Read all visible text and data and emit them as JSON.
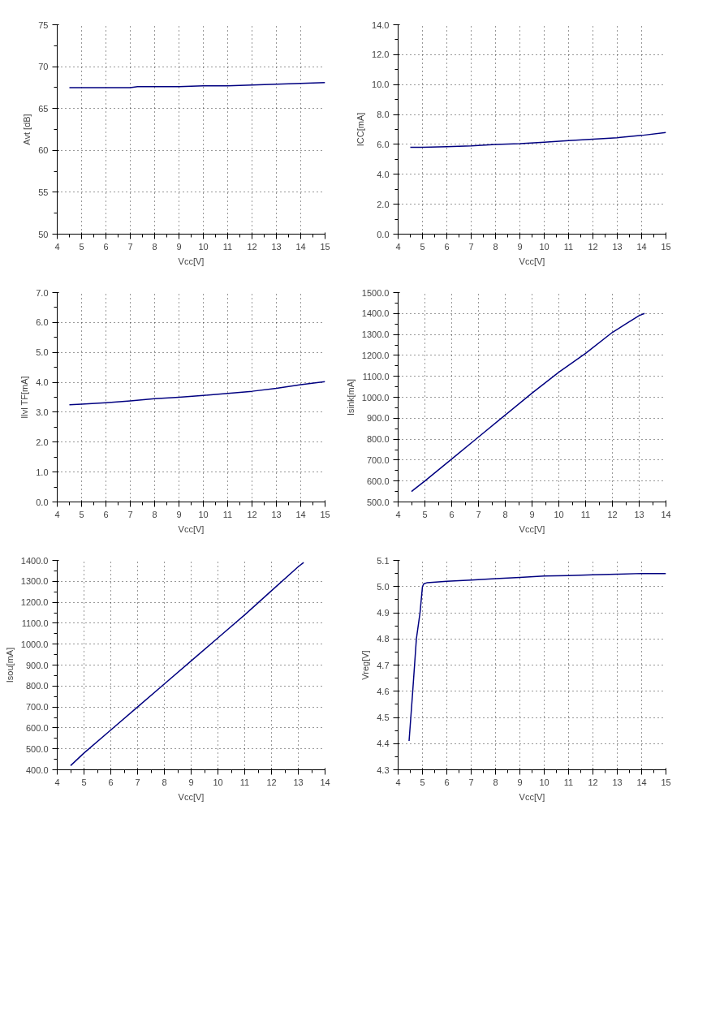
{
  "chart_data": [
    {
      "type": "line",
      "xlabel": "Vcc[V]",
      "ylabel": "Avt [dB]",
      "x": [
        4.5,
        5,
        6,
        7,
        7.3,
        8,
        9,
        10,
        11,
        12,
        13,
        14,
        15
      ],
      "series": [
        {
          "color": "#000080",
          "values": [
            67.5,
            67.5,
            67.5,
            67.5,
            67.6,
            67.6,
            67.6,
            67.7,
            67.7,
            67.8,
            67.9,
            68.0,
            68.1
          ]
        }
      ],
      "xlim": [
        4,
        15
      ],
      "ylim": [
        50,
        75
      ],
      "xticks": [
        4,
        5,
        6,
        7,
        8,
        9,
        10,
        11,
        12,
        13,
        14,
        15
      ],
      "yticks": [
        50,
        55,
        60,
        65,
        70,
        75
      ],
      "grid": true,
      "line_style": "solid"
    },
    {
      "type": "line",
      "xlabel": "Vcc[V]",
      "ylabel": "ICC[mA]",
      "x": [
        4.5,
        5,
        6,
        7,
        8,
        9,
        10,
        11,
        12,
        13,
        14,
        15
      ],
      "series": [
        {
          "color": "#000080",
          "values": [
            5.8,
            5.8,
            5.85,
            5.9,
            6.0,
            6.05,
            6.15,
            6.25,
            6.35,
            6.45,
            6.6,
            6.8
          ]
        }
      ],
      "xlim": [
        4,
        15
      ],
      "ylim": [
        0,
        14
      ],
      "xticks": [
        4,
        5,
        6,
        7,
        8,
        9,
        10,
        11,
        12,
        13,
        14,
        15
      ],
      "yticks": [
        {
          "value": 0,
          "label": "0.0"
        },
        {
          "value": 2,
          "label": "2.0"
        },
        {
          "value": 4,
          "label": "4.0"
        },
        {
          "value": 6,
          "label": "6.0"
        },
        {
          "value": 8,
          "label": "8.0"
        },
        {
          "value": 10,
          "label": "10.0"
        },
        {
          "value": 12,
          "label": "12.0"
        },
        {
          "value": 14,
          "label": "14.0"
        }
      ],
      "grid": true,
      "line_style": "solid"
    },
    {
      "type": "line",
      "xlabel": "Vcc[V]",
      "ylabel": "Ilvl TF[mA]",
      "x": [
        4.5,
        5,
        6,
        7,
        8,
        9,
        10,
        11,
        12,
        13,
        14,
        15
      ],
      "series": [
        {
          "color": "#000080",
          "values": [
            3.25,
            3.27,
            3.32,
            3.38,
            3.45,
            3.5,
            3.56,
            3.63,
            3.7,
            3.8,
            3.92,
            4.02
          ]
        }
      ],
      "xlim": [
        4,
        15
      ],
      "ylim": [
        0,
        7
      ],
      "xticks": [
        4,
        5,
        6,
        7,
        8,
        9,
        10,
        11,
        12,
        13,
        14,
        15
      ],
      "yticks": [
        {
          "value": 0,
          "label": "0.0"
        },
        {
          "value": 1,
          "label": "1.0"
        },
        {
          "value": 2,
          "label": "2.0"
        },
        {
          "value": 3,
          "label": "3.0"
        },
        {
          "value": 4,
          "label": "4.0"
        },
        {
          "value": 5,
          "label": "5.0"
        },
        {
          "value": 6,
          "label": "6.0"
        },
        {
          "value": 7,
          "label": "7.0"
        }
      ],
      "grid": true,
      "line_style": "solid"
    },
    {
      "type": "line",
      "xlabel": "Vcc[V]",
      "ylabel": "Isink[mA]",
      "x": [
        4.5,
        5,
        6,
        7,
        8,
        9,
        10,
        11,
        12,
        12.5,
        13,
        13.2
      ],
      "series": [
        {
          "color": "#000080",
          "values": [
            550,
            600,
            705,
            810,
            915,
            1020,
            1120,
            1210,
            1310,
            1350,
            1390,
            1400
          ]
        }
      ],
      "xlim": [
        4,
        14
      ],
      "ylim": [
        500,
        1500
      ],
      "xticks": [
        4,
        5,
        6,
        7,
        8,
        9,
        10,
        11,
        12,
        13,
        14
      ],
      "yticks": [
        {
          "value": 500,
          "label": "500.0"
        },
        {
          "value": 600,
          "label": "600.0"
        },
        {
          "value": 700,
          "label": "700.0"
        },
        {
          "value": 800,
          "label": "800.0"
        },
        {
          "value": 900,
          "label": "900.0"
        },
        {
          "value": 1000,
          "label": "1000.0"
        },
        {
          "value": 1100,
          "label": "1100.0"
        },
        {
          "value": 1200,
          "label": "1200.0"
        },
        {
          "value": 1300,
          "label": "1300.0"
        },
        {
          "value": 1400,
          "label": "1400.0"
        },
        {
          "value": 1500,
          "label": "1500.0"
        }
      ],
      "grid": true,
      "line_style": "solid"
    },
    {
      "type": "line",
      "xlabel": "Vcc[V]",
      "ylabel": "Isou[mA]",
      "x": [
        4.5,
        5,
        6,
        7,
        8,
        9,
        10,
        11,
        12,
        13,
        13.2
      ],
      "series": [
        {
          "color": "#000080",
          "values": [
            420,
            480,
            590,
            700,
            810,
            920,
            1030,
            1140,
            1255,
            1370,
            1390
          ]
        }
      ],
      "xlim": [
        4,
        14
      ],
      "ylim": [
        400,
        1400
      ],
      "xticks": [
        4,
        5,
        6,
        7,
        8,
        9,
        10,
        11,
        12,
        13,
        14
      ],
      "yticks": [
        {
          "value": 400,
          "label": "400.0"
        },
        {
          "value": 500,
          "label": "500.0"
        },
        {
          "value": 600,
          "label": "600.0"
        },
        {
          "value": 700,
          "label": "700.0"
        },
        {
          "value": 800,
          "label": "800.0"
        },
        {
          "value": 900,
          "label": "900.0"
        },
        {
          "value": 1000,
          "label": "1000.0"
        },
        {
          "value": 1100,
          "label": "1100.0"
        },
        {
          "value": 1200,
          "label": "1200.0"
        },
        {
          "value": 1300,
          "label": "1300.0"
        },
        {
          "value": 1400,
          "label": "1400.0"
        }
      ],
      "grid": true,
      "line_style": "solid"
    },
    {
      "type": "line",
      "xlabel": "Vcc[V]",
      "ylabel": "Vreg[V]",
      "x": [
        4.45,
        4.6,
        4.75,
        4.9,
        5.0,
        5.05,
        5.2,
        6,
        7,
        8,
        9,
        10,
        11,
        12,
        13,
        14,
        15
      ],
      "series": [
        {
          "color": "#000080",
          "values": [
            4.41,
            4.6,
            4.8,
            4.9,
            5.0,
            5.01,
            5.015,
            5.02,
            5.025,
            5.03,
            5.035,
            5.04,
            5.042,
            5.045,
            5.047,
            5.05,
            5.05
          ]
        }
      ],
      "xlim": [
        4,
        15
      ],
      "ylim": [
        4.3,
        5.1
      ],
      "xticks": [
        4,
        5,
        6,
        7,
        8,
        9,
        10,
        11,
        12,
        13,
        14,
        15
      ],
      "yticks": [
        4.3,
        4.4,
        4.5,
        4.6,
        4.7,
        4.8,
        4.9,
        {
          "value": 5,
          "label": "5.0"
        },
        5.1
      ],
      "grid": true,
      "line_style": "solid"
    }
  ]
}
